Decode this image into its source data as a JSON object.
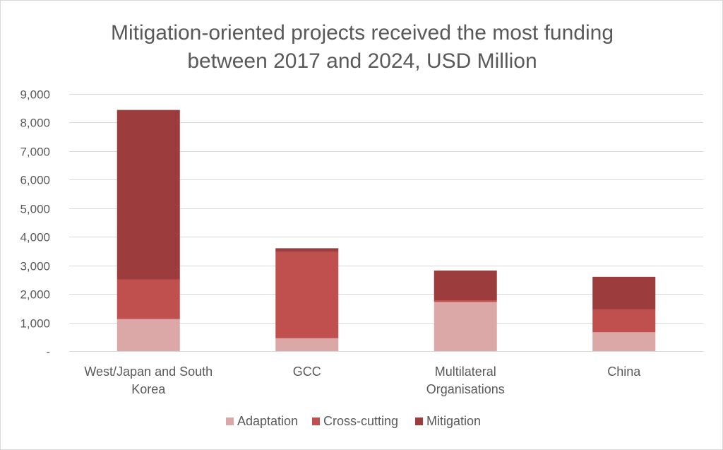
{
  "chart_data": {
    "type": "bar",
    "stacked": true,
    "title": "Mitigation-oriented projects received the most funding\nbetween 2017 and 2024, USD Million",
    "xlabel": "",
    "ylabel": "",
    "categories": [
      "West/Japan and South\nKorea",
      "GCC",
      "Multilateral\nOrganisations",
      "China"
    ],
    "series": [
      {
        "name": "Adaptation",
        "color": "#dba7a7",
        "values": [
          1120,
          450,
          1720,
          660
        ]
      },
      {
        "name": "Cross-cutting",
        "color": "#c0504d",
        "values": [
          1390,
          3020,
          60,
          790
        ]
      },
      {
        "name": "Mitigation",
        "color": "#9c3c3c",
        "values": [
          5930,
          130,
          1040,
          1150
        ]
      }
    ],
    "ylim": [
      0,
      9000
    ],
    "yticks": [
      0,
      1000,
      2000,
      3000,
      4000,
      5000,
      6000,
      7000,
      8000,
      9000
    ],
    "ytick_labels": [
      "-",
      "1,000",
      "2,000",
      "3,000",
      "4,000",
      "5,000",
      "6,000",
      "7,000",
      "8,000",
      "9,000"
    ],
    "grid": true,
    "gridline_color": "#d9d9d9",
    "legend_position": "bottom"
  }
}
